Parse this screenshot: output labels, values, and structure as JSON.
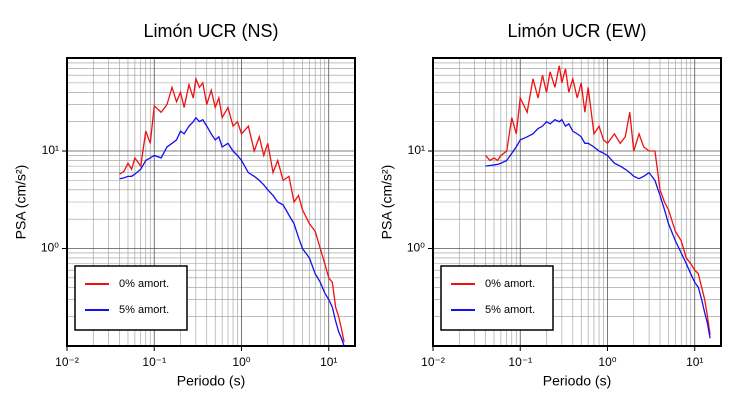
{
  "chart_data": [
    {
      "type": "line",
      "title": "Limón UCR (NS)",
      "xlabel": "Periodo (s)",
      "ylabel": "PSA (cm/s²)",
      "xscale": "log",
      "yscale": "log",
      "grid": true,
      "legend": "lower left",
      "xlim": [
        0.01,
        20
      ],
      "ylim": [
        0.1,
        90
      ],
      "xticks": [
        {
          "value": 0.01,
          "label": "10⁻²"
        },
        {
          "value": 0.1,
          "label": "10⁻¹"
        },
        {
          "value": 1,
          "label": "10⁰"
        },
        {
          "value": 10,
          "label": "10¹"
        }
      ],
      "yticks": [
        {
          "value": 1,
          "label": "10⁰"
        },
        {
          "value": 10,
          "label": "10¹"
        }
      ],
      "xminor": [
        0.02,
        0.03,
        0.04,
        0.05,
        0.06,
        0.07,
        0.08,
        0.09,
        0.2,
        0.3,
        0.4,
        0.5,
        0.6,
        0.7,
        0.8,
        0.9,
        2,
        3,
        4,
        5,
        6,
        7,
        8,
        9,
        20
      ],
      "yminor": [
        0.2,
        0.3,
        0.4,
        0.5,
        0.6,
        0.7,
        0.8,
        0.9,
        2,
        3,
        4,
        5,
        6,
        7,
        8,
        9,
        20,
        30,
        40,
        50,
        60,
        70,
        80,
        90
      ],
      "x": [
        0.04,
        0.045,
        0.05,
        0.055,
        0.06,
        0.07,
        0.08,
        0.09,
        0.1,
        0.12,
        0.14,
        0.16,
        0.18,
        0.2,
        0.22,
        0.25,
        0.28,
        0.3,
        0.33,
        0.36,
        0.4,
        0.45,
        0.5,
        0.55,
        0.6,
        0.7,
        0.8,
        0.9,
        1,
        1.2,
        1.4,
        1.6,
        1.8,
        2,
        2.3,
        2.6,
        3,
        3.5,
        4,
        4.5,
        5,
        6,
        7,
        8,
        9,
        10,
        11,
        12,
        13,
        14,
        15
      ],
      "series": [
        {
          "name": "0% amort.",
          "color": "#ee1111",
          "values": [
            5.8,
            6.2,
            7.5,
            6.5,
            8.5,
            7,
            16,
            12,
            29,
            25,
            30,
            45,
            32,
            40,
            28,
            48,
            35,
            55,
            45,
            50,
            30,
            42,
            28,
            35,
            22,
            28,
            18,
            20,
            15,
            18,
            10,
            14,
            9,
            12,
            6,
            8,
            5,
            5.5,
            3,
            3.5,
            2.5,
            1.8,
            1.5,
            1.0,
            0.7,
            0.5,
            0.45,
            0.25,
            0.2,
            0.15,
            0.11
          ]
        },
        {
          "name": "5% amort.",
          "color": "#1111ee",
          "values": [
            5.2,
            5.3,
            5.5,
            5.5,
            5.8,
            6.5,
            8,
            8.5,
            9,
            8.5,
            11,
            12,
            13,
            16,
            15,
            18,
            20,
            22,
            20,
            21,
            18,
            15,
            13,
            14,
            11,
            12,
            10,
            9,
            8,
            6,
            5.5,
            5,
            4.5,
            4,
            3.5,
            3,
            2.8,
            2.2,
            1.8,
            1.3,
            1.0,
            0.8,
            0.55,
            0.45,
            0.35,
            0.3,
            0.25,
            0.18,
            0.14,
            0.12,
            0.1
          ]
        }
      ]
    },
    {
      "type": "line",
      "title": "Limón UCR (EW)",
      "xlabel": "Periodo (s)",
      "ylabel": "PSA (cm/s²)",
      "xscale": "log",
      "yscale": "log",
      "grid": true,
      "legend": "lower left",
      "xlim": [
        0.01,
        20
      ],
      "ylim": [
        0.1,
        90
      ],
      "xticks": [
        {
          "value": 0.01,
          "label": "10⁻²"
        },
        {
          "value": 0.1,
          "label": "10⁻¹"
        },
        {
          "value": 1,
          "label": "10⁰"
        },
        {
          "value": 10,
          "label": "10¹"
        }
      ],
      "yticks": [
        {
          "value": 1,
          "label": "10⁰"
        },
        {
          "value": 10,
          "label": "10¹"
        }
      ],
      "xminor": [
        0.02,
        0.03,
        0.04,
        0.05,
        0.06,
        0.07,
        0.08,
        0.09,
        0.2,
        0.3,
        0.4,
        0.5,
        0.6,
        0.7,
        0.8,
        0.9,
        2,
        3,
        4,
        5,
        6,
        7,
        8,
        9,
        20
      ],
      "yminor": [
        0.2,
        0.3,
        0.4,
        0.5,
        0.6,
        0.7,
        0.8,
        0.9,
        2,
        3,
        4,
        5,
        6,
        7,
        8,
        9,
        20,
        30,
        40,
        50,
        60,
        70,
        80,
        90
      ],
      "x": [
        0.04,
        0.045,
        0.05,
        0.055,
        0.06,
        0.07,
        0.08,
        0.09,
        0.1,
        0.12,
        0.14,
        0.16,
        0.18,
        0.2,
        0.22,
        0.25,
        0.28,
        0.3,
        0.33,
        0.36,
        0.4,
        0.45,
        0.5,
        0.55,
        0.6,
        0.7,
        0.8,
        0.9,
        1,
        1.2,
        1.4,
        1.6,
        1.8,
        2,
        2.3,
        2.6,
        3,
        3.5,
        4,
        4.5,
        5,
        6,
        7,
        8,
        9,
        10,
        11,
        12,
        13,
        14,
        15
      ],
      "series": [
        {
          "name": "0% amort.",
          "color": "#ee1111",
          "values": [
            9,
            8,
            8.5,
            8,
            9,
            10,
            22,
            15,
            35,
            25,
            55,
            35,
            60,
            40,
            65,
            45,
            75,
            50,
            70,
            40,
            55,
            35,
            50,
            25,
            45,
            15,
            18,
            13,
            12,
            15,
            12,
            14,
            25,
            10,
            15,
            11,
            10,
            10,
            4,
            3,
            2.5,
            1.5,
            1.2,
            0.8,
            0.7,
            0.6,
            0.55,
            0.4,
            0.3,
            0.2,
            0.13
          ]
        },
        {
          "name": "5% amort.",
          "color": "#1111ee",
          "values": [
            7,
            7.1,
            7.2,
            7.3,
            7.5,
            8,
            9.5,
            11,
            13,
            14,
            15,
            17,
            18,
            20,
            19,
            21,
            20,
            21,
            18,
            19,
            16,
            15,
            14,
            12,
            12,
            11,
            10,
            9.5,
            9,
            7.5,
            7,
            6.5,
            6,
            5.5,
            5.2,
            5.5,
            6,
            5,
            3.5,
            2.5,
            1.8,
            1.2,
            0.9,
            0.7,
            0.55,
            0.45,
            0.4,
            0.3,
            0.22,
            0.17,
            0.12
          ]
        }
      ]
    }
  ]
}
